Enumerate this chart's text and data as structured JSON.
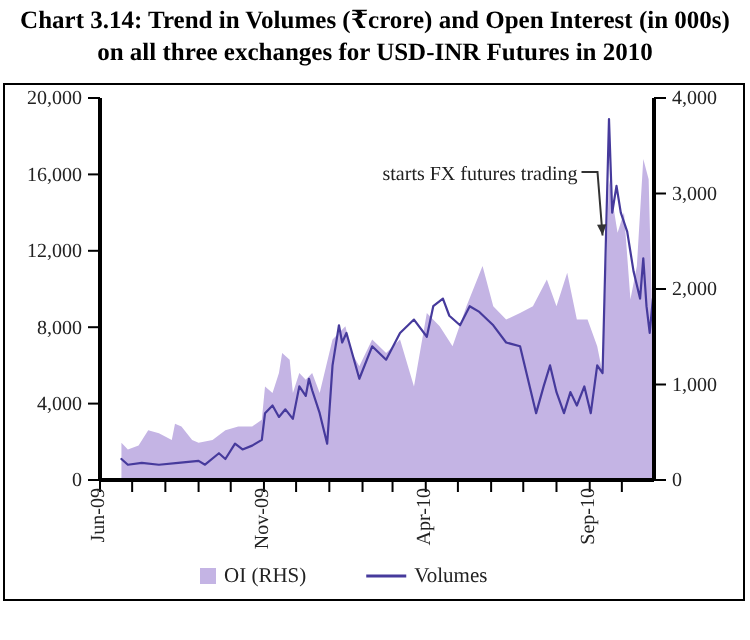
{
  "chart_data": {
    "type": "area",
    "title": "Chart 3.14: Trend in Volumes (₹crore) and Open Interest (in 000s) on all three exchanges for USD-INR Futures in 2010",
    "xlim": [
      "2009-06-01",
      "2010-10-31"
    ],
    "xticks": [
      {
        "value": "2009-06-01",
        "label": "Jun-09"
      },
      {
        "value": "2009-07-01",
        "label": null
      },
      {
        "value": "2009-08-01",
        "label": null
      },
      {
        "value": "2009-09-01",
        "label": null
      },
      {
        "value": "2009-10-01",
        "label": null
      },
      {
        "value": "2009-11-01",
        "label": "Nov-09"
      },
      {
        "value": "2009-12-01",
        "label": null
      },
      {
        "value": "2010-01-01",
        "label": null
      },
      {
        "value": "2010-02-01",
        "label": null
      },
      {
        "value": "2010-03-01",
        "label": null
      },
      {
        "value": "2010-04-01",
        "label": "Apr-10"
      },
      {
        "value": "2010-05-01",
        "label": null
      },
      {
        "value": "2010-06-01",
        "label": null
      },
      {
        "value": "2010-07-01",
        "label": null
      },
      {
        "value": "2010-08-01",
        "label": null
      },
      {
        "value": "2010-09-01",
        "label": "Sep-10"
      },
      {
        "value": "2010-10-01",
        "label": null
      }
    ],
    "ylim": [
      0,
      20000
    ],
    "yticks": [
      {
        "value": 0,
        "label": "0"
      },
      {
        "value": 4000,
        "label": "4,000"
      },
      {
        "value": 8000,
        "label": "8,000"
      },
      {
        "value": 12000,
        "label": "12,000"
      },
      {
        "value": 16000,
        "label": "16,000"
      },
      {
        "value": 20000,
        "label": "20,000"
      }
    ],
    "y2lim": [
      0,
      4000
    ],
    "y2ticks": [
      {
        "value": 0,
        "label": "0"
      },
      {
        "value": 1000,
        "label": "1,000"
      },
      {
        "value": 2000,
        "label": "2,000"
      },
      {
        "value": 3000,
        "label": "3,000"
      },
      {
        "value": 4000,
        "label": "4,000"
      }
    ],
    "legend": "bottom",
    "grid": false,
    "annotations": [
      {
        "text": "starts FX futures trading",
        "x": "2010-09-13",
        "y": 12800
      }
    ],
    "series": [
      {
        "name": "OI (RHS)",
        "axis": "y2",
        "color": "#c4b4e4",
        "x": [
          "2009-06-21",
          "2009-06-27",
          "2009-07-07",
          "2009-07-16",
          "2009-07-26",
          "2009-08-07",
          "2009-08-10",
          "2009-08-16",
          "2009-08-26",
          "2009-09-01",
          "2009-09-14",
          "2009-09-26",
          "2009-10-08",
          "2009-10-21",
          "2009-10-30",
          "2009-11-02",
          "2009-11-09",
          "2009-11-15",
          "2009-11-18",
          "2009-11-25",
          "2009-11-28",
          "2009-12-04",
          "2009-12-10",
          "2009-12-16",
          "2009-12-23",
          "2009-12-29",
          "2010-01-04",
          "2010-01-10",
          "2010-01-16",
          "2010-01-22",
          "2010-01-29",
          "2010-02-10",
          "2010-02-23",
          "2010-03-08",
          "2010-03-21",
          "2010-04-02",
          "2010-04-14",
          "2010-04-26",
          "2010-05-09",
          "2010-05-24",
          "2010-06-03",
          "2010-06-15",
          "2010-06-28",
          "2010-07-10",
          "2010-07-23",
          "2010-08-01",
          "2010-08-11",
          "2010-08-20",
          "2010-08-30",
          "2010-09-08",
          "2010-09-13",
          "2010-09-19",
          "2010-09-27",
          "2010-10-03",
          "2010-10-09",
          "2010-10-15",
          "2010-10-21",
          "2010-10-26",
          "2010-10-30"
        ],
        "values": [
          390,
          320,
          360,
          520,
          490,
          420,
          590,
          560,
          420,
          390,
          420,
          520,
          560,
          560,
          630,
          980,
          910,
          1120,
          1330,
          1260,
          910,
          1120,
          1050,
          1120,
          910,
          1190,
          1470,
          1540,
          1610,
          1330,
          1190,
          1470,
          1330,
          1470,
          980,
          1750,
          1610,
          1400,
          1820,
          2240,
          1820,
          1680,
          1750,
          1820,
          2100,
          1820,
          2170,
          1680,
          1680,
          1400,
          1120,
          3150,
          2590,
          2800,
          1890,
          2240,
          3360,
          3150,
          1400
        ]
      },
      {
        "name": "Volumes",
        "type": "line",
        "color": "#463a9c",
        "x": [
          "2009-06-21",
          "2009-06-27",
          "2009-07-10",
          "2009-07-26",
          "2009-08-13",
          "2009-09-01",
          "2009-09-07",
          "2009-09-20",
          "2009-09-26",
          "2009-10-05",
          "2009-10-12",
          "2009-10-21",
          "2009-10-30",
          "2009-11-02",
          "2009-11-09",
          "2009-11-15",
          "2009-11-21",
          "2009-11-28",
          "2009-12-04",
          "2009-12-10",
          "2009-12-13",
          "2009-12-16",
          "2009-12-23",
          "2009-12-30",
          "2010-01-04",
          "2010-01-10",
          "2010-01-13",
          "2010-01-17",
          "2010-01-22",
          "2010-01-29",
          "2010-02-10",
          "2010-02-23",
          "2010-03-08",
          "2010-03-21",
          "2010-04-02",
          "2010-04-08",
          "2010-04-17",
          "2010-04-23",
          "2010-05-03",
          "2010-05-12",
          "2010-05-21",
          "2010-06-03",
          "2010-06-15",
          "2010-06-28",
          "2010-07-07",
          "2010-07-13",
          "2010-07-20",
          "2010-07-26",
          "2010-08-01",
          "2010-08-08",
          "2010-08-14",
          "2010-08-20",
          "2010-08-27",
          "2010-09-02",
          "2010-09-08",
          "2010-09-13",
          "2010-09-16",
          "2010-09-19",
          "2010-09-22",
          "2010-09-26",
          "2010-09-30",
          "2010-10-06",
          "2010-10-12",
          "2010-10-18",
          "2010-10-21",
          "2010-10-24",
          "2010-10-27",
          "2010-10-30"
        ],
        "values": [
          1100,
          800,
          900,
          800,
          900,
          1000,
          800,
          1400,
          1100,
          1900,
          1600,
          1800,
          2100,
          3500,
          3900,
          3300,
          3700,
          3200,
          4900,
          4400,
          5300,
          4700,
          3500,
          1900,
          6000,
          8100,
          7200,
          7700,
          6700,
          5300,
          7000,
          6300,
          7700,
          8400,
          7500,
          9100,
          9500,
          8600,
          8100,
          9100,
          8800,
          8100,
          7200,
          7000,
          4900,
          3500,
          4900,
          6000,
          4600,
          3500,
          4600,
          3900,
          4900,
          3500,
          6000,
          5600,
          12300,
          18900,
          14000,
          15400,
          14000,
          13000,
          10900,
          9500,
          11600,
          9100,
          7700,
          9500
        ]
      }
    ]
  }
}
